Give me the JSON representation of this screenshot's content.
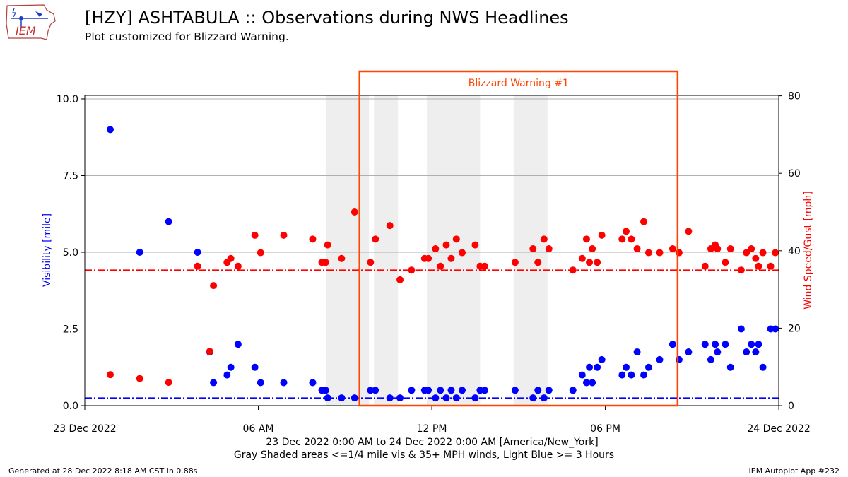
{
  "header": {
    "title": "[HZY] ASHTABULA :: Observations during NWS Headlines",
    "subtitle": "Plot customized for Blizzard Warning.",
    "logo_text": "IEM"
  },
  "footer": {
    "generated": "Generated at 28 Dec 2022 8:18 AM CST in 0.88s",
    "app": "IEM Autoplot App #232"
  },
  "chart_data": {
    "type": "scatter",
    "xlabel_line1": "23 Dec 2022 0:00 AM to 24 Dec 2022 0:00 AM [America/New_York]",
    "xlabel_line2": "Gray Shaded areas <=1/4 mile vis & 35+ MPH winds, Light Blue >= 3 Hours",
    "ylabel_left": "Visibility [mile]",
    "ylabel_right": "Wind Speed/Gust [mph]",
    "x_range_hours": [
      0,
      24
    ],
    "ylim_left": [
      0,
      10
    ],
    "ylim_right": [
      0,
      80
    ],
    "x_ticks": [
      {
        "hour": 0,
        "label": "23 Dec 2022"
      },
      {
        "hour": 6,
        "label": "06 AM"
      },
      {
        "hour": 12,
        "label": "12 PM"
      },
      {
        "hour": 18,
        "label": "06 PM"
      },
      {
        "hour": 24,
        "label": "24 Dec 2022"
      }
    ],
    "y_ticks_left": [
      "0.0",
      "2.5",
      "5.0",
      "7.5",
      "10.0"
    ],
    "y_ticks_right": [
      "0",
      "20",
      "40",
      "60",
      "80"
    ],
    "grid": true,
    "threshold_visibility": 0.25,
    "threshold_wind": 35,
    "warning": {
      "label": "Blizzard Warning #1",
      "start_hour": 9.5,
      "end_hour": 20.5
    },
    "shaded_periods": [
      [
        8.33,
        9.83
      ],
      [
        10.0,
        10.83
      ],
      [
        11.83,
        13.67
      ],
      [
        14.83,
        16.0
      ]
    ],
    "colors": {
      "visibility": "#0000ff",
      "wind": "#ff0000",
      "warning": "#ff4500",
      "shade": "#eeeeee"
    },
    "series": [
      {
        "name": "Visibility",
        "axis": "left",
        "points": [
          [
            0.88,
            9.0
          ],
          [
            1.9,
            5.0
          ],
          [
            2.9,
            6.0
          ],
          [
            3.9,
            5.0
          ],
          [
            4.32,
            1.75
          ],
          [
            4.45,
            0.75
          ],
          [
            4.92,
            1.0
          ],
          [
            5.05,
            1.25
          ],
          [
            5.3,
            2.0
          ],
          [
            5.88,
            1.25
          ],
          [
            6.08,
            0.75
          ],
          [
            6.88,
            0.75
          ],
          [
            7.88,
            0.75
          ],
          [
            8.2,
            0.5
          ],
          [
            8.33,
            0.5
          ],
          [
            8.4,
            0.25
          ],
          [
            8.88,
            0.25
          ],
          [
            9.33,
            0.25
          ],
          [
            9.88,
            0.5
          ],
          [
            10.05,
            0.5
          ],
          [
            10.55,
            0.25
          ],
          [
            10.9,
            0.25
          ],
          [
            11.3,
            0.5
          ],
          [
            11.75,
            0.5
          ],
          [
            11.88,
            0.5
          ],
          [
            12.13,
            0.25
          ],
          [
            12.3,
            0.5
          ],
          [
            12.5,
            0.25
          ],
          [
            12.67,
            0.5
          ],
          [
            12.85,
            0.25
          ],
          [
            13.05,
            0.5
          ],
          [
            13.5,
            0.25
          ],
          [
            13.67,
            0.5
          ],
          [
            13.83,
            0.5
          ],
          [
            14.88,
            0.5
          ],
          [
            15.5,
            0.25
          ],
          [
            15.67,
            0.5
          ],
          [
            15.88,
            0.25
          ],
          [
            16.05,
            0.5
          ],
          [
            16.88,
            0.5
          ],
          [
            17.2,
            1.0
          ],
          [
            17.35,
            0.75
          ],
          [
            17.45,
            1.25
          ],
          [
            17.55,
            0.75
          ],
          [
            17.72,
            1.25
          ],
          [
            17.88,
            1.5
          ],
          [
            18.58,
            1.0
          ],
          [
            18.72,
            1.25
          ],
          [
            18.9,
            1.0
          ],
          [
            19.1,
            1.75
          ],
          [
            19.33,
            1.0
          ],
          [
            19.5,
            1.25
          ],
          [
            19.88,
            1.5
          ],
          [
            20.33,
            2.0
          ],
          [
            20.55,
            1.5
          ],
          [
            20.88,
            1.75
          ],
          [
            21.45,
            2.0
          ],
          [
            21.65,
            1.5
          ],
          [
            21.8,
            2.0
          ],
          [
            21.88,
            1.75
          ],
          [
            22.15,
            2.0
          ],
          [
            22.33,
            1.25
          ],
          [
            22.7,
            2.5
          ],
          [
            22.88,
            1.75
          ],
          [
            23.05,
            2.0
          ],
          [
            23.2,
            1.75
          ],
          [
            23.3,
            2.0
          ],
          [
            23.45,
            1.25
          ],
          [
            23.72,
            2.5
          ],
          [
            23.88,
            2.5
          ]
        ]
      },
      {
        "name": "Wind Speed/Gust",
        "axis": "right",
        "points": [
          [
            0.88,
            8
          ],
          [
            1.9,
            7
          ],
          [
            2.9,
            6
          ],
          [
            3.9,
            36
          ],
          [
            4.32,
            14
          ],
          [
            4.45,
            31
          ],
          [
            4.92,
            37
          ],
          [
            5.05,
            38
          ],
          [
            5.3,
            36
          ],
          [
            5.88,
            44
          ],
          [
            6.08,
            39.5
          ],
          [
            6.88,
            44
          ],
          [
            7.88,
            43
          ],
          [
            8.2,
            37
          ],
          [
            8.33,
            37
          ],
          [
            8.4,
            41.5
          ],
          [
            8.88,
            38
          ],
          [
            9.33,
            50
          ],
          [
            9.88,
            37
          ],
          [
            10.05,
            43
          ],
          [
            10.55,
            46.5
          ],
          [
            10.9,
            32.5
          ],
          [
            11.3,
            35
          ],
          [
            11.75,
            38
          ],
          [
            11.88,
            38
          ],
          [
            12.13,
            40.5
          ],
          [
            12.3,
            36
          ],
          [
            12.5,
            41.5
          ],
          [
            12.67,
            38
          ],
          [
            12.85,
            43
          ],
          [
            13.05,
            39.5
          ],
          [
            13.5,
            41.5
          ],
          [
            13.67,
            36
          ],
          [
            13.83,
            36
          ],
          [
            14.88,
            37
          ],
          [
            15.5,
            40.5
          ],
          [
            15.67,
            37
          ],
          [
            15.88,
            43
          ],
          [
            16.05,
            40.5
          ],
          [
            16.88,
            35
          ],
          [
            17.2,
            38
          ],
          [
            17.35,
            43
          ],
          [
            17.45,
            37
          ],
          [
            17.55,
            40.5
          ],
          [
            17.72,
            37
          ],
          [
            17.88,
            44
          ],
          [
            18.58,
            43
          ],
          [
            18.72,
            45
          ],
          [
            18.9,
            43
          ],
          [
            19.1,
            40.5
          ],
          [
            19.33,
            47.5
          ],
          [
            19.5,
            39.5
          ],
          [
            19.88,
            39.5
          ],
          [
            20.33,
            40.5
          ],
          [
            20.55,
            39.5
          ],
          [
            20.88,
            45
          ],
          [
            21.45,
            36
          ],
          [
            21.65,
            40.5
          ],
          [
            21.8,
            41.5
          ],
          [
            21.88,
            40.5
          ],
          [
            22.15,
            37
          ],
          [
            22.33,
            40.5
          ],
          [
            22.7,
            35
          ],
          [
            22.88,
            39.5
          ],
          [
            23.05,
            40.5
          ],
          [
            23.2,
            38
          ],
          [
            23.3,
            36
          ],
          [
            23.45,
            39.5
          ],
          [
            23.72,
            36
          ],
          [
            23.88,
            39.5
          ]
        ]
      }
    ]
  }
}
